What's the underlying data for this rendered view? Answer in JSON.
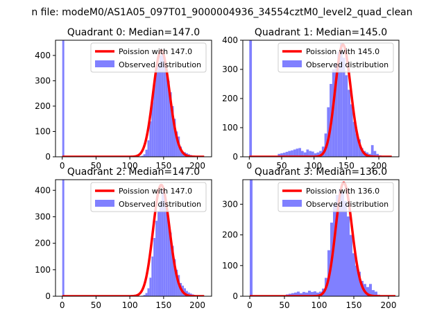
{
  "suptitle": "n file: modeM0/AS1A05_097T01_9000004936_34554cztM0_level2_quad_clean",
  "colors": {
    "poisson": "#ff0000",
    "observed": "#8080ff",
    "axis": "#000000"
  },
  "chart_data": [
    {
      "type": "bar",
      "title": "Quadrant 0: Median=147.0",
      "median": 147.0,
      "xlim": [
        -10,
        221
      ],
      "ylim": [
        0,
        460
      ],
      "xticks": [
        0,
        50,
        100,
        150,
        200
      ],
      "yticks": [
        0,
        100,
        200,
        300,
        400
      ],
      "legend": {
        "position": "top-right",
        "entries": [
          "Poission with 147.0",
          "Observed distribution"
        ]
      },
      "histogram": {
        "bin_edges": [
          0,
          3,
          6,
          9,
          12,
          15,
          18,
          21,
          24,
          27,
          30,
          33,
          36,
          39,
          42,
          45,
          48,
          51,
          54,
          57,
          60,
          63,
          66,
          69,
          72,
          75,
          78,
          81,
          84,
          87,
          90,
          93,
          96,
          99,
          102,
          105,
          108,
          111,
          114,
          117,
          120,
          123,
          126,
          129,
          132,
          135,
          138,
          141,
          144,
          147,
          150,
          153,
          156,
          159,
          162,
          165,
          168,
          171,
          174,
          177,
          180,
          183,
          186,
          189,
          192,
          195,
          198,
          201,
          204,
          207,
          210
        ],
        "counts": [
          460,
          0,
          0,
          0,
          0,
          0,
          0,
          0,
          0,
          0,
          0,
          0,
          0,
          0,
          0,
          0,
          0,
          0,
          0,
          0,
          0,
          0,
          0,
          0,
          0,
          0,
          0,
          0,
          0,
          0,
          0,
          0,
          0,
          0,
          0,
          0,
          0,
          1,
          2,
          4,
          10,
          28,
          65,
          140,
          215,
          290,
          335,
          370,
          400,
          410,
          380,
          340,
          300,
          255,
          200,
          150,
          100,
          80,
          40,
          20,
          18,
          14,
          10,
          7,
          5,
          3,
          2,
          1,
          0,
          0
        ]
      },
      "poisson": {
        "lambda": 147.0,
        "x_range": [
          0,
          210
        ],
        "peak": 420
      }
    },
    {
      "type": "bar",
      "title": "Quadrant 1: Median=145.0",
      "median": 145.0,
      "xlim": [
        -10,
        231
      ],
      "ylim": [
        0,
        400
      ],
      "xticks": [
        0,
        50,
        100,
        150,
        200
      ],
      "yticks": [
        0,
        100,
        200,
        300,
        400
      ],
      "legend": {
        "position": "top-right",
        "entries": [
          "Poission with 145.0",
          "Observed distribution"
        ]
      },
      "histogram": {
        "bin_edges": [
          0,
          4,
          8,
          12,
          16,
          20,
          24,
          28,
          32,
          36,
          40,
          44,
          48,
          52,
          56,
          60,
          64,
          68,
          72,
          76,
          80,
          84,
          88,
          92,
          96,
          100,
          104,
          108,
          112,
          116,
          120,
          124,
          128,
          132,
          136,
          140,
          144,
          148,
          152,
          156,
          160,
          164,
          168,
          172,
          176,
          180,
          184,
          188,
          192,
          196,
          200,
          204,
          208,
          212,
          216,
          220
        ],
        "counts": [
          400,
          0,
          0,
          0,
          0,
          0,
          0,
          0,
          0,
          0,
          0,
          10,
          12,
          14,
          17,
          20,
          22,
          25,
          28,
          30,
          20,
          15,
          25,
          20,
          18,
          12,
          15,
          20,
          35,
          80,
          170,
          250,
          300,
          320,
          360,
          390,
          340,
          280,
          230,
          180,
          120,
          80,
          60,
          30,
          20,
          15,
          10,
          40,
          20,
          10,
          5,
          3,
          2,
          1,
          0
        ]
      },
      "poisson": {
        "lambda": 145.0,
        "x_range": [
          0,
          220
        ],
        "peak": 385
      }
    },
    {
      "type": "bar",
      "title": "Quadrant 2: Median=147.0",
      "median": 147.0,
      "xlim": [
        -10,
        221
      ],
      "ylim": [
        0,
        440
      ],
      "xticks": [
        0,
        50,
        100,
        150,
        200
      ],
      "yticks": [
        0,
        100,
        200,
        300,
        400
      ],
      "legend": {
        "position": "top-right",
        "entries": [
          "Poission with 147.0",
          "Observed distribution"
        ]
      },
      "histogram": {
        "bin_edges": [
          0,
          3,
          6,
          9,
          12,
          15,
          18,
          21,
          24,
          27,
          30,
          33,
          36,
          39,
          42,
          45,
          48,
          51,
          54,
          57,
          60,
          63,
          66,
          69,
          72,
          75,
          78,
          81,
          84,
          87,
          90,
          93,
          96,
          99,
          102,
          105,
          108,
          111,
          114,
          117,
          120,
          123,
          126,
          129,
          132,
          135,
          138,
          141,
          144,
          147,
          150,
          153,
          156,
          159,
          162,
          165,
          168,
          171,
          174,
          177,
          180,
          183,
          186,
          189,
          192,
          195,
          198,
          201,
          204,
          207,
          210
        ],
        "counts": [
          440,
          0,
          0,
          0,
          0,
          0,
          0,
          0,
          0,
          0,
          0,
          0,
          0,
          0,
          0,
          0,
          0,
          0,
          0,
          0,
          0,
          0,
          0,
          0,
          0,
          0,
          0,
          0,
          0,
          0,
          0,
          0,
          0,
          0,
          0,
          0,
          0,
          0,
          1,
          2,
          5,
          12,
          30,
          70,
          150,
          220,
          285,
          320,
          360,
          400,
          380,
          340,
          280,
          240,
          190,
          140,
          100,
          80,
          50,
          40,
          30,
          20,
          14,
          10,
          7,
          4,
          2,
          1,
          0,
          0
        ]
      },
      "poisson": {
        "lambda": 147.0,
        "x_range": [
          0,
          210
        ],
        "peak": 420
      }
    },
    {
      "type": "bar",
      "title": "Quadrant 3: Median=136.0",
      "median": 136.0,
      "xlim": [
        -10,
        215
      ],
      "ylim": [
        0,
        380
      ],
      "xticks": [
        0,
        50,
        100,
        150,
        200
      ],
      "yticks": [
        0,
        100,
        200,
        300
      ],
      "legend": {
        "position": "top-right",
        "entries": [
          "Poission with 136.0",
          "Observed distribution"
        ]
      },
      "histogram": {
        "bin_edges": [
          0,
          4,
          8,
          12,
          16,
          20,
          24,
          28,
          32,
          36,
          40,
          44,
          48,
          52,
          56,
          60,
          64,
          68,
          72,
          76,
          80,
          84,
          88,
          92,
          96,
          100,
          104,
          108,
          112,
          116,
          120,
          124,
          128,
          132,
          136,
          140,
          144,
          148,
          152,
          156,
          160,
          164,
          168,
          172,
          176,
          180,
          184,
          188,
          192,
          196,
          200,
          204
        ],
        "counts": [
          380,
          0,
          0,
          0,
          0,
          0,
          0,
          0,
          0,
          0,
          0,
          0,
          2,
          6,
          8,
          10,
          12,
          15,
          10,
          14,
          12,
          18,
          14,
          16,
          12,
          15,
          25,
          60,
          150,
          240,
          300,
          330,
          350,
          340,
          310,
          260,
          200,
          140,
          100,
          80,
          50,
          40,
          30,
          40,
          20,
          15,
          5,
          3,
          2,
          1,
          0
        ]
      },
      "poisson": {
        "lambda": 136.0,
        "x_range": [
          0,
          210
        ],
        "peak": 370
      }
    }
  ]
}
